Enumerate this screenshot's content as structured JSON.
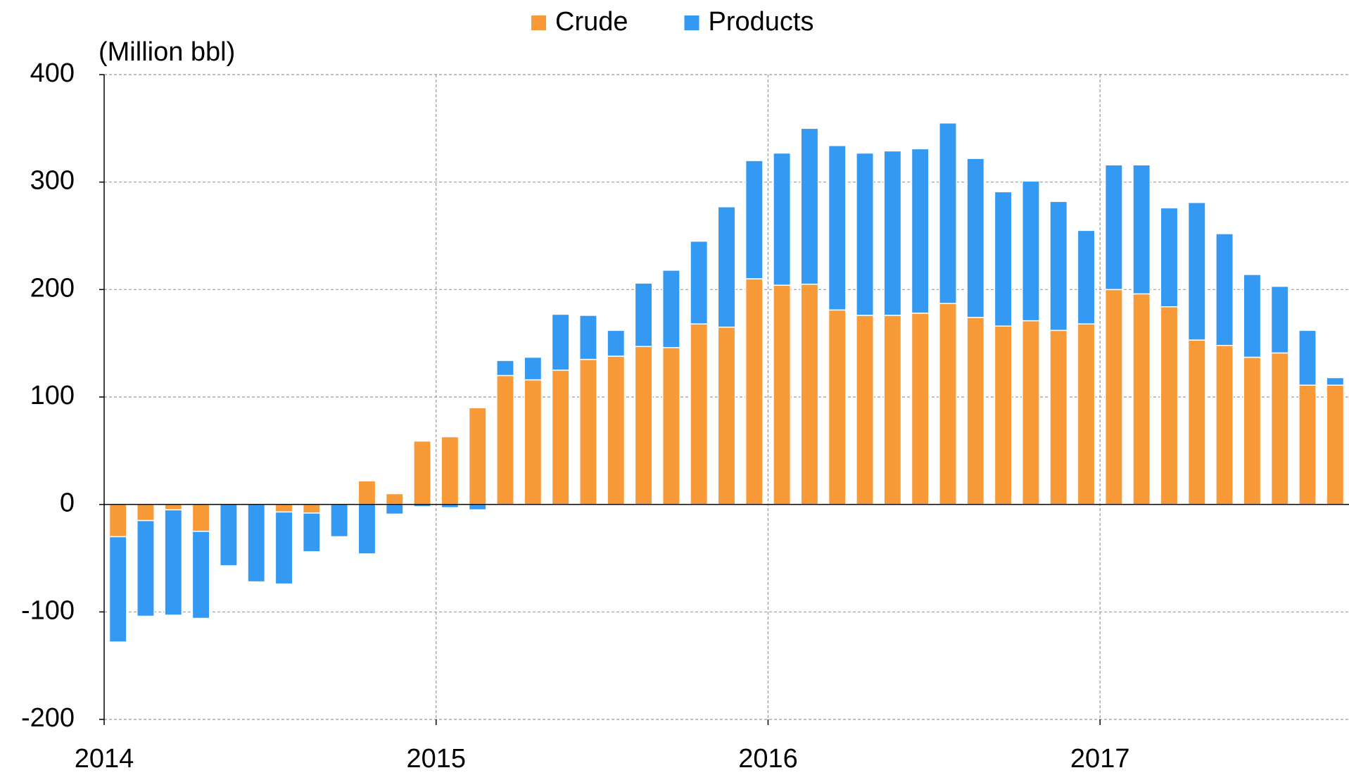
{
  "chart_data": {
    "type": "bar",
    "stacked": true,
    "y_label": "(Million bbl)",
    "categories": [
      "2014",
      null,
      null,
      null,
      null,
      null,
      null,
      null,
      null,
      null,
      null,
      null,
      "2015",
      null,
      null,
      null,
      null,
      null,
      null,
      null,
      null,
      null,
      null,
      null,
      "2016",
      null,
      null,
      null,
      null,
      null,
      null,
      null,
      null,
      null,
      null,
      null,
      "2017",
      null,
      null,
      null,
      null,
      null,
      null,
      null,
      null
    ],
    "series": [
      {
        "name": "Crude",
        "color": "#f99a38",
        "values": [
          -30,
          -15,
          -5,
          -25,
          0,
          0,
          -7,
          -8,
          0,
          22,
          10,
          59,
          63,
          90,
          120,
          116,
          125,
          135,
          138,
          147,
          146,
          168,
          165,
          210,
          204,
          205,
          181,
          176,
          176,
          178,
          187,
          174,
          166,
          171,
          162,
          168,
          200,
          196,
          184,
          153,
          148,
          137,
          141,
          111,
          111
        ]
      },
      {
        "name": "Products",
        "color": "#3399f3",
        "values": [
          -98,
          -89,
          -98,
          -81,
          -57,
          -72,
          -67,
          -36,
          -30,
          -46,
          -9,
          -2,
          -3,
          -5,
          14,
          21,
          52,
          41,
          24,
          59,
          72,
          77,
          112,
          110,
          123,
          145,
          153,
          151,
          153,
          153,
          168,
          148,
          125,
          130,
          120,
          87,
          116,
          120,
          92,
          128,
          104,
          77,
          62,
          51,
          7
        ]
      }
    ],
    "ylim": [
      -200,
      400
    ],
    "yticks": [
      -200,
      -100,
      0,
      100,
      200,
      300,
      400
    ],
    "grid": true,
    "legend": "top"
  }
}
